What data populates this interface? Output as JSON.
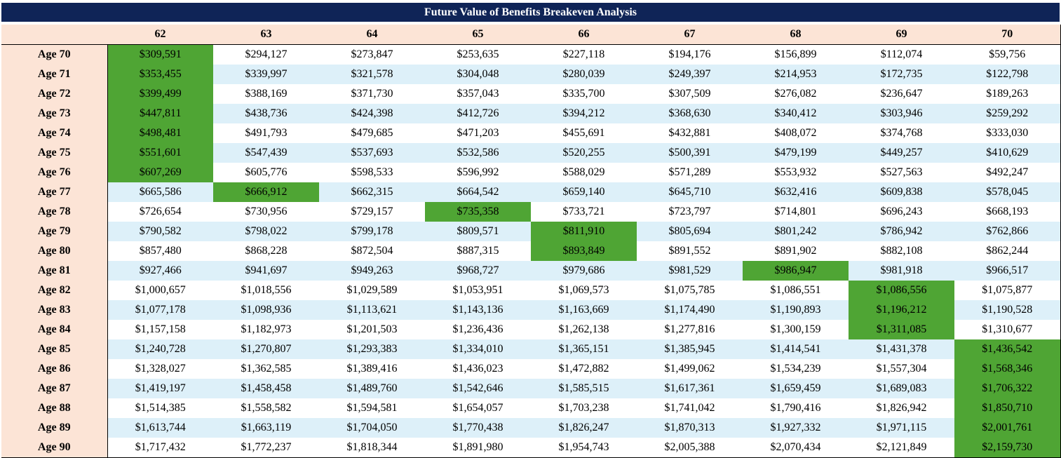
{
  "title": "Future Value of Benefits Breakeven Analysis",
  "columns": [
    "62",
    "63",
    "64",
    "65",
    "66",
    "67",
    "68",
    "69",
    "70"
  ],
  "colors": {
    "header_bg": "#0f2457",
    "label_bg": "#fce4d6",
    "stripe": "#ddf0f9",
    "highlight": "#4fa534"
  },
  "rows": [
    {
      "label": "Age 70",
      "hl": [
        0
      ],
      "values": [
        "$309,591",
        "$294,127",
        "$273,847",
        "$253,635",
        "$227,118",
        "$194,176",
        "$156,899",
        "$112,074",
        "$59,756"
      ]
    },
    {
      "label": "Age 71",
      "hl": [
        0
      ],
      "values": [
        "$353,455",
        "$339,997",
        "$321,578",
        "$304,048",
        "$280,039",
        "$249,397",
        "$214,953",
        "$172,735",
        "$122,798"
      ]
    },
    {
      "label": "Age 72",
      "hl": [
        0
      ],
      "values": [
        "$399,499",
        "$388,169",
        "$371,730",
        "$357,043",
        "$335,700",
        "$307,509",
        "$276,082",
        "$236,647",
        "$189,263"
      ]
    },
    {
      "label": "Age 73",
      "hl": [
        0
      ],
      "values": [
        "$447,811",
        "$438,736",
        "$424,398",
        "$412,726",
        "$394,212",
        "$368,630",
        "$340,412",
        "$303,946",
        "$259,292"
      ]
    },
    {
      "label": "Age 74",
      "hl": [
        0
      ],
      "values": [
        "$498,481",
        "$491,793",
        "$479,685",
        "$471,203",
        "$455,691",
        "$432,881",
        "$408,072",
        "$374,768",
        "$333,030"
      ]
    },
    {
      "label": "Age 75",
      "hl": [
        0
      ],
      "values": [
        "$551,601",
        "$547,439",
        "$537,693",
        "$532,586",
        "$520,255",
        "$500,391",
        "$479,199",
        "$449,257",
        "$410,629"
      ]
    },
    {
      "label": "Age 76",
      "hl": [
        0
      ],
      "values": [
        "$607,269",
        "$605,776",
        "$598,533",
        "$596,992",
        "$588,029",
        "$571,289",
        "$553,932",
        "$527,563",
        "$492,247"
      ]
    },
    {
      "label": "Age 77",
      "hl": [
        1
      ],
      "values": [
        "$665,586",
        "$666,912",
        "$662,315",
        "$664,542",
        "$659,140",
        "$645,710",
        "$632,416",
        "$609,838",
        "$578,045"
      ]
    },
    {
      "label": "Age 78",
      "hl": [
        3
      ],
      "values": [
        "$726,654",
        "$730,956",
        "$729,157",
        "$735,358",
        "$733,721",
        "$723,797",
        "$714,801",
        "$696,243",
        "$668,193"
      ]
    },
    {
      "label": "Age 79",
      "hl": [
        4
      ],
      "values": [
        "$790,582",
        "$798,022",
        "$799,178",
        "$809,571",
        "$811,910",
        "$805,694",
        "$801,242",
        "$786,942",
        "$762,866"
      ]
    },
    {
      "label": "Age 80",
      "hl": [
        4
      ],
      "values": [
        "$857,480",
        "$868,228",
        "$872,504",
        "$887,315",
        "$893,849",
        "$891,552",
        "$891,902",
        "$882,108",
        "$862,244"
      ]
    },
    {
      "label": "Age 81",
      "hl": [
        6
      ],
      "values": [
        "$927,466",
        "$941,697",
        "$949,263",
        "$968,727",
        "$979,686",
        "$981,529",
        "$986,947",
        "$981,918",
        "$966,517"
      ]
    },
    {
      "label": "Age 82",
      "hl": [
        7
      ],
      "values": [
        "$1,000,657",
        "$1,018,556",
        "$1,029,589",
        "$1,053,951",
        "$1,069,573",
        "$1,075,785",
        "$1,086,551",
        "$1,086,556",
        "$1,075,877"
      ]
    },
    {
      "label": "Age 83",
      "hl": [
        7
      ],
      "values": [
        "$1,077,178",
        "$1,098,936",
        "$1,113,621",
        "$1,143,136",
        "$1,163,669",
        "$1,174,490",
        "$1,190,893",
        "$1,196,212",
        "$1,190,528"
      ]
    },
    {
      "label": "Age 84",
      "hl": [
        7
      ],
      "values": [
        "$1,157,158",
        "$1,182,973",
        "$1,201,503",
        "$1,236,436",
        "$1,262,138",
        "$1,277,816",
        "$1,300,159",
        "$1,311,085",
        "$1,310,677"
      ]
    },
    {
      "label": "Age 85",
      "hl": [
        8
      ],
      "values": [
        "$1,240,728",
        "$1,270,807",
        "$1,293,383",
        "$1,334,010",
        "$1,365,151",
        "$1,385,945",
        "$1,414,541",
        "$1,431,378",
        "$1,436,542"
      ]
    },
    {
      "label": "Age 86",
      "hl": [
        8
      ],
      "values": [
        "$1,328,027",
        "$1,362,585",
        "$1,389,416",
        "$1,436,023",
        "$1,472,882",
        "$1,499,062",
        "$1,534,239",
        "$1,557,304",
        "$1,568,346"
      ]
    },
    {
      "label": "Age 87",
      "hl": [
        8
      ],
      "values": [
        "$1,419,197",
        "$1,458,458",
        "$1,489,760",
        "$1,542,646",
        "$1,585,515",
        "$1,617,361",
        "$1,659,459",
        "$1,689,083",
        "$1,706,322"
      ]
    },
    {
      "label": "Age 88",
      "hl": [
        8
      ],
      "values": [
        "$1,514,385",
        "$1,558,582",
        "$1,594,581",
        "$1,654,057",
        "$1,703,238",
        "$1,741,042",
        "$1,790,416",
        "$1,826,942",
        "$1,850,710"
      ]
    },
    {
      "label": "Age 89",
      "hl": [
        8
      ],
      "values": [
        "$1,613,744",
        "$1,663,119",
        "$1,704,050",
        "$1,770,438",
        "$1,826,247",
        "$1,870,313",
        "$1,927,332",
        "$1,971,115",
        "$2,001,761"
      ]
    },
    {
      "label": "Age 90",
      "hl": [
        8
      ],
      "values": [
        "$1,717,432",
        "$1,772,237",
        "$1,818,344",
        "$1,891,980",
        "$1,954,743",
        "$2,005,388",
        "$2,070,434",
        "$2,121,849",
        "$2,159,730"
      ]
    }
  ]
}
